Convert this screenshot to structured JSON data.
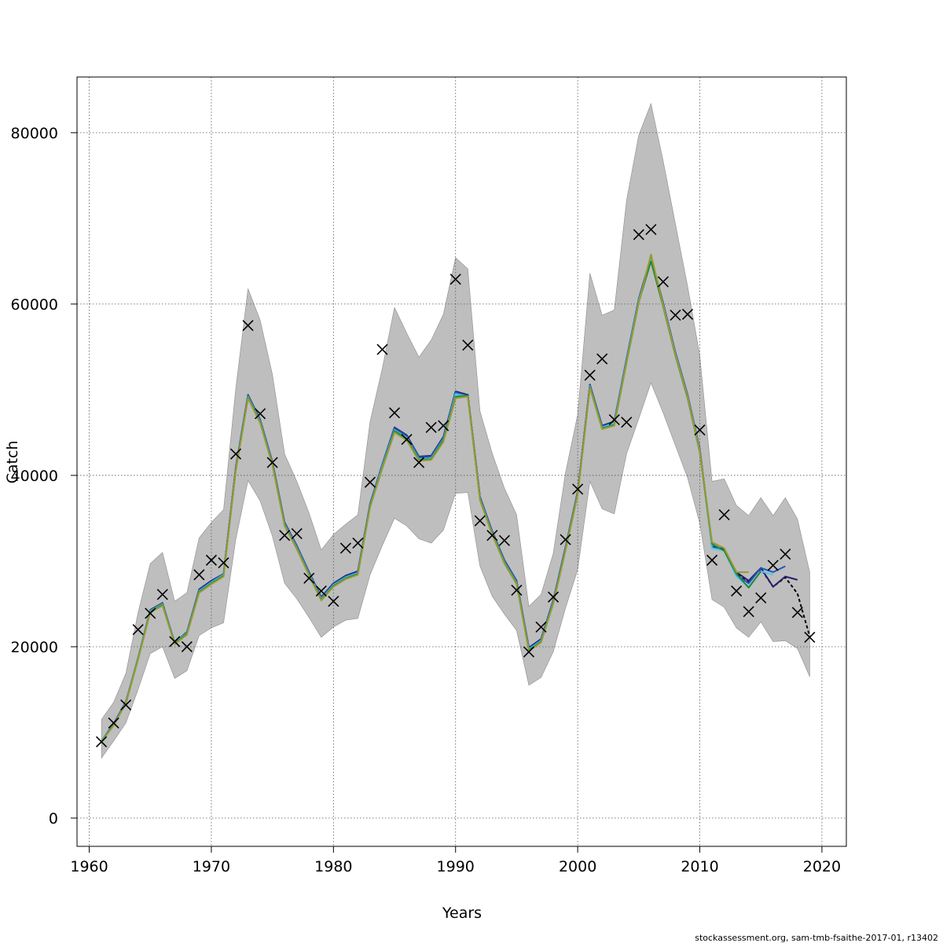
{
  "chart_data": {
    "type": "line",
    "xlabel": "Years",
    "ylabel": "Catch",
    "xlim": [
      1959,
      2022
    ],
    "ylim": [
      -3300,
      86500
    ],
    "x_ticks": [
      1960,
      1970,
      1980,
      1990,
      2000,
      2010,
      2020
    ],
    "y_ticks": [
      0,
      20000,
      40000,
      60000,
      80000
    ],
    "grid": true,
    "legend": "none",
    "colors": {
      "band": "#bebebe",
      "band_edge": "#8c8c8c",
      "observed": "#000000",
      "grid": "#555555"
    },
    "observed": {
      "marker": "x",
      "years": [
        1961,
        1962,
        1963,
        1964,
        1965,
        1966,
        1967,
        1968,
        1969,
        1970,
        1971,
        1972,
        1973,
        1974,
        1975,
        1976,
        1977,
        1978,
        1979,
        1980,
        1981,
        1982,
        1983,
        1984,
        1985,
        1986,
        1987,
        1988,
        1989,
        1990,
        1991,
        1992,
        1993,
        1994,
        1995,
        1996,
        1997,
        1998,
        1999,
        2000,
        2001,
        2002,
        2003,
        2004,
        2005,
        2006,
        2007,
        2008,
        2009,
        2010,
        2011,
        2012,
        2013,
        2014,
        2015,
        2016,
        2017,
        2018,
        2019
      ],
      "values": [
        8900,
        11100,
        13200,
        22000,
        23900,
        26100,
        20600,
        20000,
        28400,
        30100,
        29800,
        42500,
        57500,
        47200,
        41500,
        33000,
        33200,
        28000,
        26500,
        25300,
        31500,
        32100,
        39200,
        54700,
        47300,
        44200,
        41500,
        45600,
        45800,
        62900,
        55200,
        34700,
        33000,
        32400,
        26600,
        19400,
        22300,
        25800,
        32500,
        38400,
        51700,
        53600,
        46500,
        46200,
        68100,
        68700,
        62600,
        58700,
        58800,
        45300,
        30100,
        35400,
        26500,
        24100,
        25700,
        29500,
        30800,
        24000,
        21100
      ]
    },
    "band": {
      "years": [
        1961,
        1962,
        1963,
        1964,
        1965,
        1966,
        1967,
        1968,
        1969,
        1970,
        1971,
        1972,
        1973,
        1974,
        1975,
        1976,
        1977,
        1978,
        1979,
        1980,
        1981,
        1982,
        1983,
        1984,
        1985,
        1986,
        1987,
        1988,
        1989,
        1990,
        1991,
        1992,
        1993,
        1994,
        1995,
        1996,
        1997,
        1998,
        1999,
        2000,
        2001,
        2002,
        2003,
        2004,
        2005,
        2006,
        2007,
        2008,
        2009,
        2010,
        2011,
        2012,
        2013,
        2014,
        2015,
        2016,
        2017,
        2018,
        2019
      ],
      "lower": [
        7000,
        9000,
        11100,
        15000,
        19200,
        20000,
        16300,
        17200,
        21300,
        22200,
        22800,
        32500,
        39400,
        37000,
        32900,
        27400,
        25600,
        23400,
        21100,
        22300,
        23100,
        23300,
        28400,
        31800,
        35000,
        34100,
        32600,
        32100,
        33600,
        37900,
        38000,
        29400,
        25900,
        23800,
        21900,
        15500,
        16400,
        19400,
        24500,
        29000,
        39300,
        36100,
        35500,
        42500,
        46600,
        50800,
        47300,
        43500,
        39700,
        34400,
        25500,
        24600,
        22200,
        21100,
        22900,
        20600,
        20700,
        19800,
        16500
      ],
      "upper": [
        11500,
        13500,
        16900,
        24000,
        29700,
        31000,
        25300,
        26300,
        32700,
        34500,
        36000,
        50100,
        61800,
        58100,
        51800,
        42500,
        39300,
        35600,
        31300,
        33100,
        34300,
        35400,
        46300,
        52500,
        59600,
        56600,
        53800,
        55800,
        58800,
        65400,
        64100,
        47500,
        42600,
        38500,
        35400,
        24700,
        26100,
        30900,
        40300,
        47100,
        63600,
        58700,
        59300,
        72100,
        79700,
        83400,
        76700,
        69400,
        62100,
        54000,
        39300,
        39600,
        36500,
        35300,
        37400,
        35300,
        37400,
        34900,
        28700
      ]
    },
    "series": [
      {
        "color": "#000000",
        "dashed": true,
        "years": [
          1961,
          1962,
          1963,
          1964,
          1965,
          1966,
          1967,
          1968,
          1969,
          1970,
          1971,
          1972,
          1973,
          1974,
          1975,
          1976,
          1977,
          1978,
          1979,
          1980,
          1981,
          1982,
          1983,
          1984,
          1985,
          1986,
          1987,
          1988,
          1989,
          1990,
          1991,
          1992,
          1993,
          1994,
          1995,
          1996,
          1997,
          1998,
          1999,
          2000,
          2001,
          2002,
          2003,
          2004,
          2005,
          2006,
          2007,
          2008,
          2009,
          2010,
          2011,
          2012,
          2013,
          2014,
          2015,
          2016,
          2017,
          2018,
          2019
        ],
        "values": [
          8900,
          10900,
          13500,
          18600,
          24200,
          25100,
          20400,
          21700,
          26600,
          27600,
          28500,
          40800,
          49300,
          46400,
          41500,
          34400,
          31700,
          28600,
          25700,
          27300,
          28200,
          28700,
          36600,
          41200,
          45500,
          44600,
          42100,
          42200,
          44400,
          49800,
          49400,
          37400,
          33400,
          30000,
          27600,
          19800,
          20800,
          25300,
          31500,
          38000,
          50500,
          45700,
          46200,
          53500,
          60500,
          65400,
          60000,
          54300,
          49300,
          43000,
          31600,
          31300,
          28600,
          27600,
          29100,
          27000,
          28100,
          26200,
          21200
        ]
      },
      {
        "color": "#2a1e6e",
        "dashed": false,
        "years": [
          1961,
          1962,
          1963,
          1964,
          1965,
          1966,
          1967,
          1968,
          1969,
          1970,
          1971,
          1972,
          1973,
          1974,
          1975,
          1976,
          1977,
          1978,
          1979,
          1980,
          1981,
          1982,
          1983,
          1984,
          1985,
          1986,
          1987,
          1988,
          1989,
          1990,
          1991,
          1992,
          1993,
          1994,
          1995,
          1996,
          1997,
          1998,
          1999,
          2000,
          2001,
          2002,
          2003,
          2004,
          2005,
          2006,
          2007,
          2008,
          2009,
          2010,
          2011,
          2012,
          2013,
          2014,
          2015,
          2016,
          2017,
          2018
        ],
        "values": [
          9000,
          11000,
          13600,
          18700,
          24300,
          25100,
          20500,
          21700,
          26700,
          27700,
          28500,
          40900,
          49400,
          46500,
          41600,
          34500,
          31800,
          28700,
          25800,
          27400,
          28300,
          28800,
          36700,
          41300,
          45600,
          44700,
          42200,
          42300,
          44500,
          49800,
          49400,
          37500,
          33500,
          30100,
          27700,
          19900,
          20900,
          25400,
          31600,
          38100,
          50600,
          45800,
          46300,
          53600,
          60600,
          65500,
          60100,
          54400,
          49400,
          43100,
          31700,
          31400,
          28700,
          27700,
          29200,
          27000,
          28200,
          27800
        ]
      },
      {
        "color": "#2255bb",
        "dashed": false,
        "years": [
          1961,
          1962,
          1963,
          1964,
          1965,
          1966,
          1967,
          1968,
          1969,
          1970,
          1971,
          1972,
          1973,
          1974,
          1975,
          1976,
          1977,
          1978,
          1979,
          1980,
          1981,
          1982,
          1983,
          1984,
          1985,
          1986,
          1987,
          1988,
          1989,
          1990,
          1991,
          1992,
          1993,
          1994,
          1995,
          1996,
          1997,
          1998,
          1999,
          2000,
          2001,
          2002,
          2003,
          2004,
          2005,
          2006,
          2007,
          2008,
          2009,
          2010,
          2011,
          2012,
          2013,
          2014,
          2015,
          2016,
          2017
        ],
        "values": [
          9000,
          11000,
          13500,
          18700,
          24200,
          25000,
          20500,
          21600,
          26600,
          27600,
          28500,
          40800,
          49300,
          46400,
          41500,
          34400,
          31700,
          28600,
          25700,
          27300,
          28200,
          28700,
          36600,
          41200,
          45500,
          44600,
          42100,
          42200,
          44400,
          49700,
          49300,
          37400,
          33400,
          30000,
          27600,
          19800,
          20800,
          25300,
          31500,
          38000,
          50500,
          45700,
          46200,
          53500,
          60500,
          65400,
          60000,
          54300,
          49300,
          43000,
          31600,
          31300,
          28400,
          27400,
          29200,
          28700,
          29400
        ]
      },
      {
        "color": "#4ac8e8",
        "dashed": false,
        "years": [
          1961,
          1962,
          1963,
          1964,
          1965,
          1966,
          1967,
          1968,
          1969,
          1970,
          1971,
          1972,
          1973,
          1974,
          1975,
          1976,
          1977,
          1978,
          1979,
          1980,
          1981,
          1982,
          1983,
          1984,
          1985,
          1986,
          1987,
          1988,
          1989,
          1990,
          1991,
          1992,
          1993,
          1994,
          1995,
          1996,
          1997,
          1998,
          1999,
          2000,
          2001,
          2002,
          2003,
          2004,
          2005,
          2006,
          2007,
          2008,
          2009,
          2010,
          2011,
          2012,
          2013,
          2014,
          2015,
          2016
        ],
        "values": [
          9000,
          10900,
          13500,
          18700,
          24200,
          25000,
          20500,
          21600,
          26500,
          27500,
          28400,
          40700,
          49200,
          46300,
          41400,
          34300,
          31600,
          28500,
          25600,
          27200,
          28100,
          28600,
          36500,
          41100,
          45300,
          44400,
          41900,
          42000,
          44200,
          49500,
          49200,
          37300,
          33300,
          29900,
          27500,
          19700,
          20700,
          25200,
          31400,
          37900,
          50400,
          45600,
          46100,
          53400,
          60400,
          65200,
          59900,
          54200,
          49200,
          42900,
          31500,
          31200,
          28200,
          27000,
          28800,
          28400
        ]
      },
      {
        "color": "#1e8a3c",
        "dashed": false,
        "years": [
          1961,
          1962,
          1963,
          1964,
          1965,
          1966,
          1967,
          1968,
          1969,
          1970,
          1971,
          1972,
          1973,
          1974,
          1975,
          1976,
          1977,
          1978,
          1979,
          1980,
          1981,
          1982,
          1983,
          1984,
          1985,
          1986,
          1987,
          1988,
          1989,
          1990,
          1991,
          1992,
          1993,
          1994,
          1995,
          1996,
          1997,
          1998,
          1999,
          2000,
          2001,
          2002,
          2003,
          2004,
          2005,
          2006,
          2007,
          2008,
          2009,
          2010,
          2011,
          2012,
          2013,
          2014,
          2015
        ],
        "values": [
          8900,
          10900,
          13400,
          18600,
          24100,
          24900,
          20400,
          21500,
          26400,
          27400,
          28300,
          40600,
          49100,
          46200,
          41300,
          34200,
          31500,
          28400,
          25500,
          27100,
          28000,
          28500,
          36400,
          40900,
          45200,
          44300,
          41800,
          41900,
          44100,
          49200,
          49300,
          37200,
          33200,
          29800,
          27400,
          19600,
          20600,
          25100,
          31300,
          37800,
          50300,
          45500,
          45900,
          53200,
          60200,
          65000,
          59700,
          54000,
          49000,
          42700,
          32000,
          31200,
          28500,
          26900,
          28800
        ]
      },
      {
        "color": "#9a9a2e",
        "dashed": false,
        "years": [
          1961,
          1962,
          1963,
          1964,
          1965,
          1966,
          1967,
          1968,
          1969,
          1970,
          1971,
          1972,
          1973,
          1974,
          1975,
          1976,
          1977,
          1978,
          1979,
          1980,
          1981,
          1982,
          1983,
          1984,
          1985,
          1986,
          1987,
          1988,
          1989,
          1990,
          1991,
          1992,
          1993,
          1994,
          1995,
          1996,
          1997,
          1998,
          1999,
          2000,
          2001,
          2002,
          2003,
          2004,
          2005,
          2006,
          2007,
          2008,
          2009,
          2010,
          2011,
          2012,
          2013,
          2014
        ],
        "values": [
          8900,
          10800,
          13400,
          18500,
          24000,
          24800,
          20300,
          21400,
          26300,
          27300,
          28200,
          40500,
          49000,
          46100,
          41200,
          34100,
          31400,
          28300,
          25400,
          27000,
          27900,
          28400,
          36300,
          40800,
          45000,
          44100,
          41700,
          41800,
          43900,
          49000,
          49200,
          37100,
          33100,
          29700,
          27300,
          19500,
          20500,
          25000,
          31200,
          37700,
          50200,
          45400,
          45800,
          53100,
          60100,
          65800,
          59800,
          54100,
          49100,
          42800,
          32200,
          31500,
          28700,
          28700
        ]
      }
    ]
  },
  "footer": {
    "credit": "stockassessment.org, sam-tmb-fsaithe-2017-01, r13402"
  }
}
